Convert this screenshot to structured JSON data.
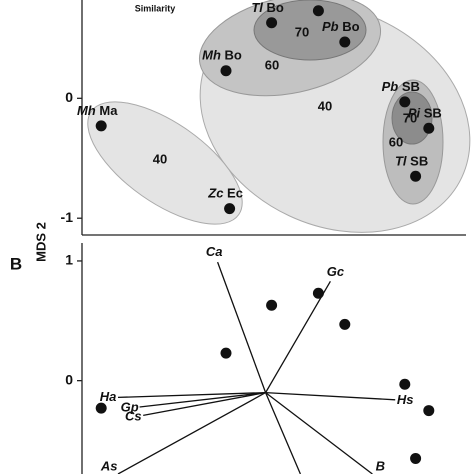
{
  "chart_data": [
    {
      "type": "scatter",
      "y_label": "MDS 2",
      "legend_title": "Similarity",
      "xlim": [
        -1.86,
        1.34
      ],
      "ylim": [
        -1.14,
        0.82
      ],
      "yticks": [
        -1,
        0
      ],
      "x": [
        -1.7,
        -0.63,
        -0.66,
        -0.28,
        0.11,
        0.33,
        0.83,
        1.03,
        0.92
      ],
      "y": [
        -0.23,
        -0.92,
        0.23,
        0.63,
        0.73,
        0.47,
        -0.03,
        -0.25,
        -0.65
      ],
      "labels": [
        [
          "Mh",
          "Ma"
        ],
        [
          "Zc",
          "Ec"
        ],
        [
          "Mh",
          "Bo"
        ],
        [
          "Tl",
          "Bo"
        ],
        null,
        [
          "Pb",
          "Bo"
        ],
        [
          "Pb",
          "SB"
        ],
        [
          "Pi",
          "SB"
        ],
        [
          "Tl",
          "SB"
        ]
      ],
      "contour_labels": [
        "70",
        "60",
        "40",
        "70",
        "60",
        "40"
      ]
    },
    {
      "type": "biplot",
      "panel_label": "B",
      "xlim": [
        -1.86,
        1.34
      ],
      "ylim": [
        -0.78,
        1.15
      ],
      "yticks": [
        0,
        1
      ],
      "x": [
        -1.7,
        -0.66,
        -0.28,
        0.11,
        0.33,
        0.83,
        1.03,
        0.92
      ],
      "y": [
        -0.23,
        0.23,
        0.63,
        0.73,
        0.47,
        -0.03,
        -0.25,
        -0.65
      ],
      "vectors": {
        "origin": [
          -0.33,
          -0.1
        ],
        "labels": [
          "Ca",
          "Gc",
          "Ha",
          "Gp",
          "Cs",
          "As",
          "Hs",
          "B",
          null
        ],
        "x": [
          -0.73,
          0.21,
          -1.56,
          -1.38,
          -1.35,
          -1.56,
          0.75,
          0.56,
          -0.04
        ],
        "y": [
          0.99,
          0.83,
          -0.14,
          -0.22,
          -0.29,
          -0.78,
          -0.16,
          -0.78,
          -0.78
        ]
      }
    }
  ]
}
